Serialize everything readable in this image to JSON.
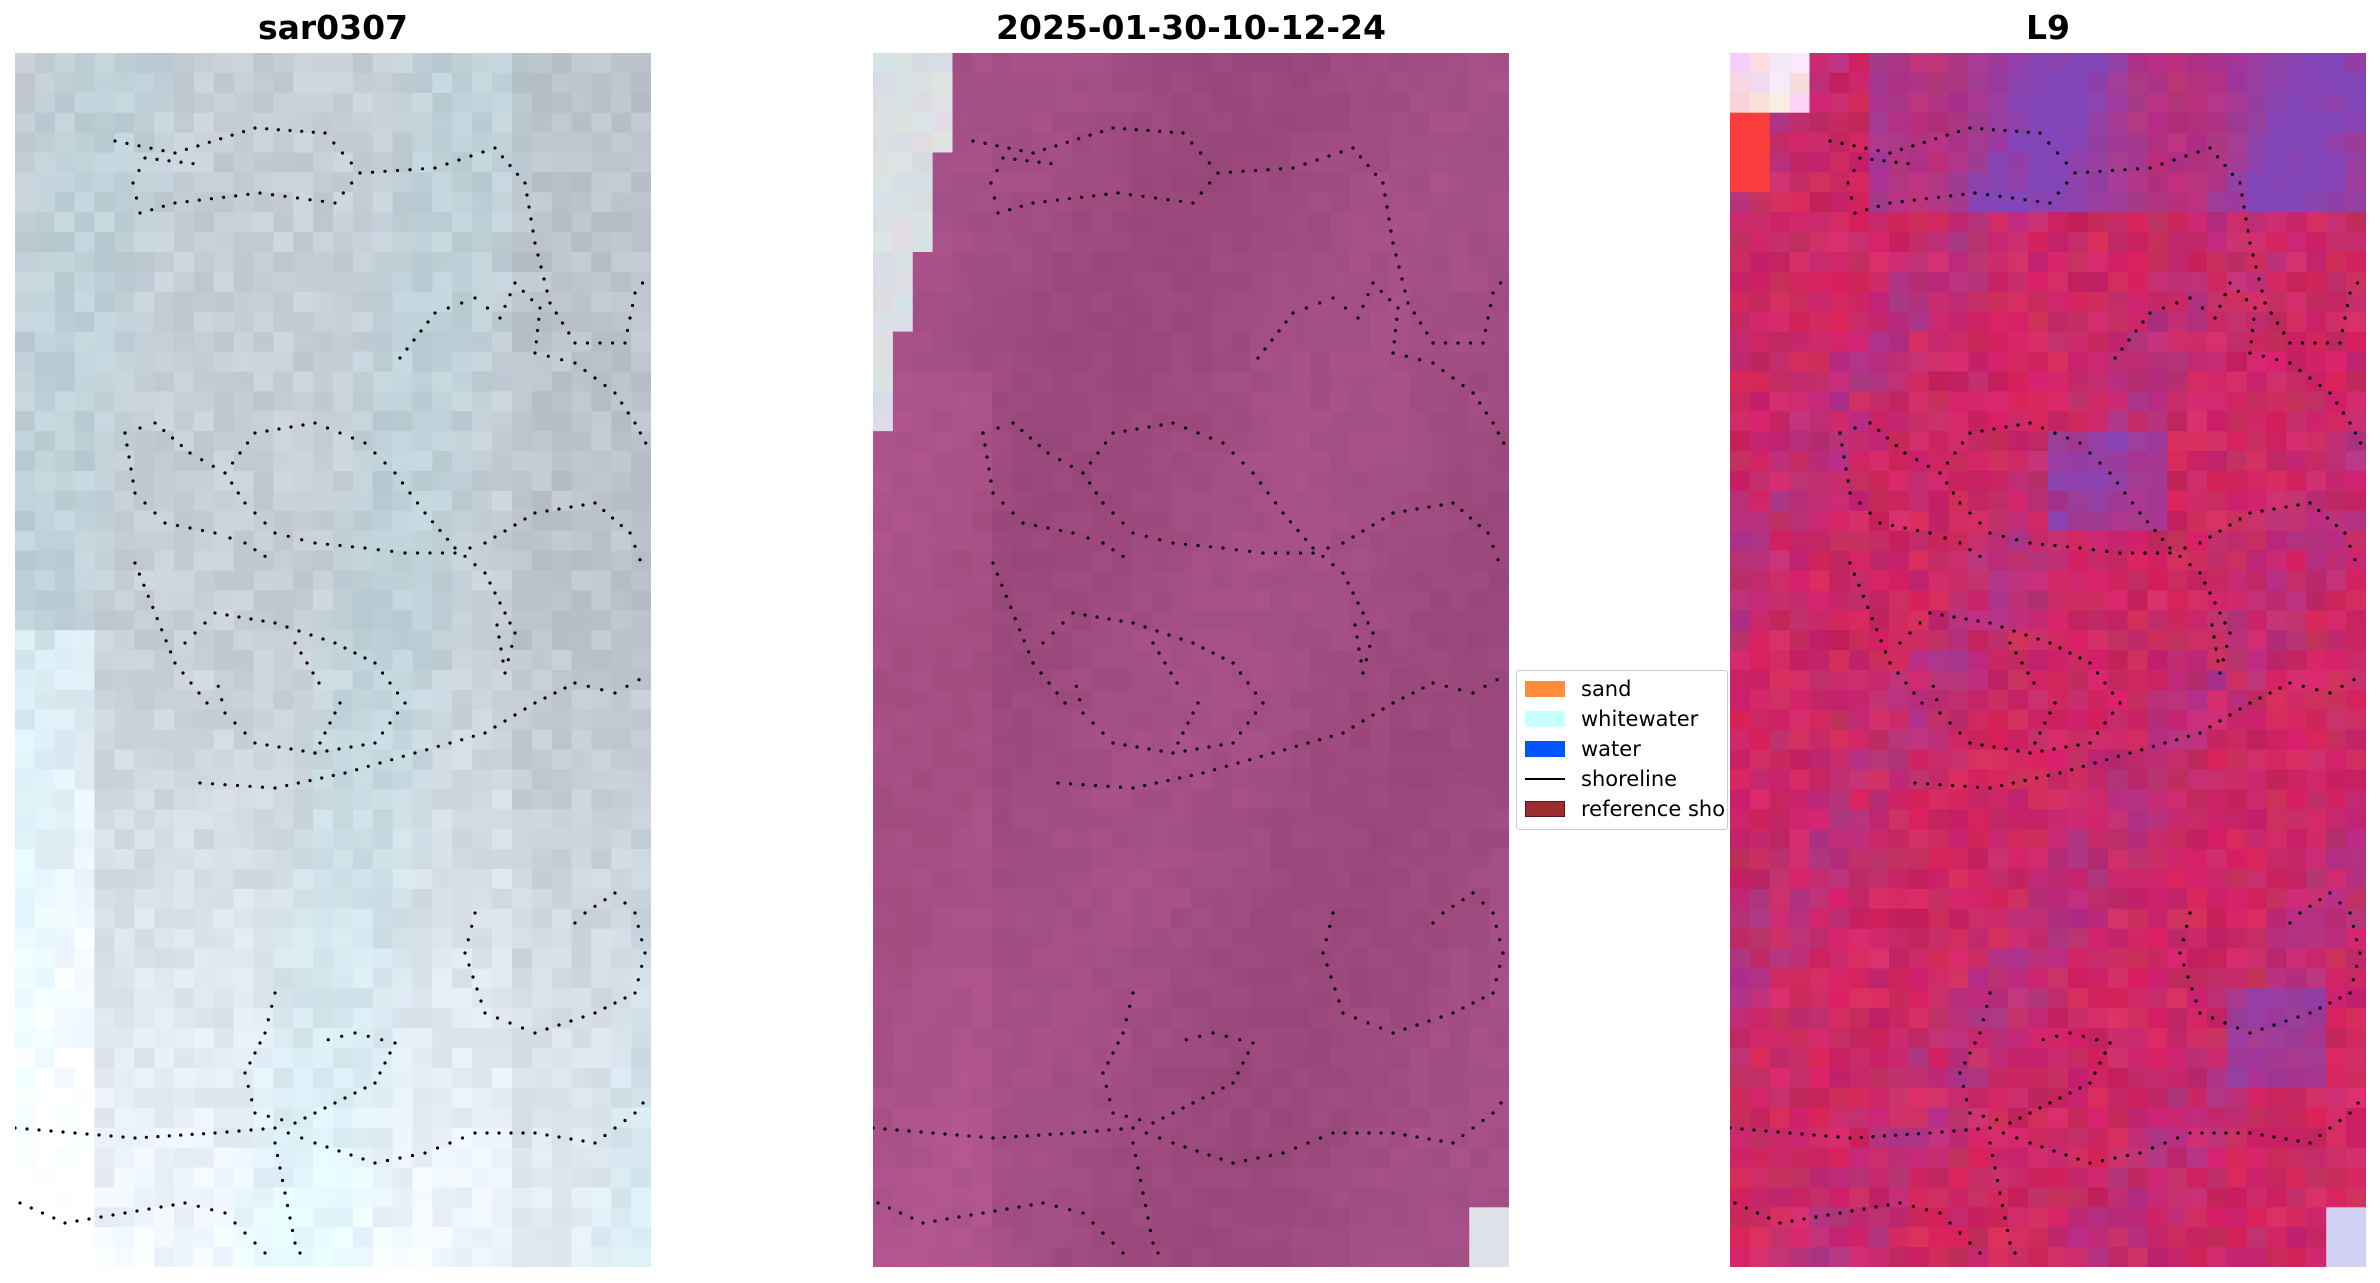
{
  "panels": [
    {
      "title": "sar0307",
      "style": "rgb-natural"
    },
    {
      "title": "2025-01-30-10-12-24",
      "style": "uniform-magenta"
    },
    {
      "title": "L9",
      "style": "false-color-red-purple"
    }
  ],
  "legend": {
    "placement": "center, between second and third panel",
    "items": [
      {
        "label": "sand",
        "color": "#ff8c3c",
        "kind": "patch"
      },
      {
        "label": "whitewater",
        "color": "#c8ffff",
        "kind": "patch"
      },
      {
        "label": "water",
        "color": "#0055ff",
        "kind": "patch"
      },
      {
        "label": "shoreline",
        "color": "#000000",
        "kind": "line"
      },
      {
        "label": "reference sho",
        "color": "#9b2d30",
        "kind": "patch"
      }
    ]
  },
  "colors": {
    "panel1_base": "#c7cdd3",
    "panel2_base": "#9e4b83",
    "panel3_base": "#c8336a",
    "contour": "#000000"
  }
}
